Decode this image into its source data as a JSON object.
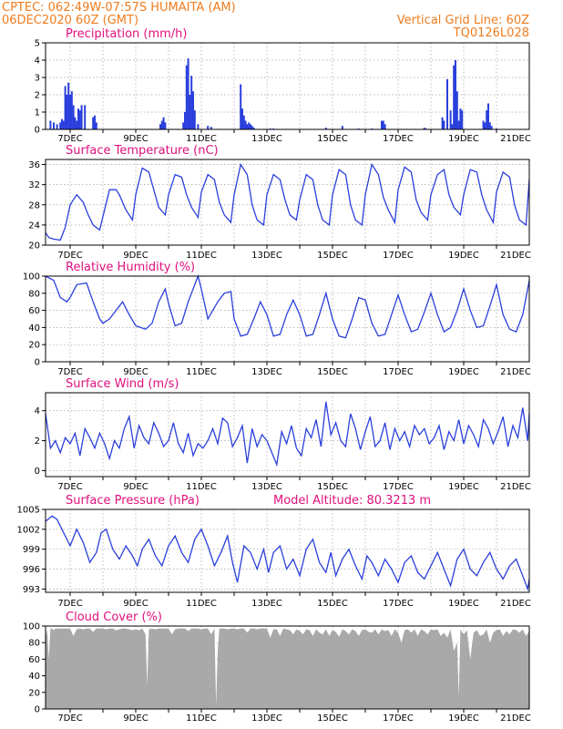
{
  "header": {
    "line1_left": "CPTEC:   062:49W-07:57S   HUMAITA (AM)",
    "line2_left": "06DEC2020 60Z (GMT)",
    "line1_right": "Vertical Grid Line: 60Z",
    "line2_right": "TQ0126L028"
  },
  "colors": {
    "header": "#f07c1e",
    "title": "#e0107e",
    "line": "#2a3fdc",
    "cloud": "#a9a9a9",
    "grid": "#a0a0a0"
  },
  "x_axis": {
    "labels": [
      "7DEC",
      "9DEC",
      "11DEC",
      "13DEC",
      "15DEC",
      "17DEC",
      "19DEC",
      "21DEC"
    ],
    "xlim": [
      6.25,
      21.0
    ]
  },
  "chart_data": [
    {
      "id": "precip",
      "type": "bar",
      "title": "Precipitation (mm/h)",
      "ylim": [
        0,
        5
      ],
      "yticks": [
        "0",
        "1",
        "2",
        "3",
        "4",
        "5"
      ],
      "x": [
        6.4,
        6.5,
        6.6,
        6.7,
        6.75,
        6.8,
        6.85,
        6.9,
        6.95,
        7.0,
        7.05,
        7.1,
        7.15,
        7.2,
        7.25,
        7.3,
        7.35,
        7.45,
        7.7,
        7.75,
        7.8,
        9.75,
        9.8,
        9.85,
        9.9,
        10.45,
        10.5,
        10.55,
        10.6,
        10.65,
        10.7,
        10.75,
        10.8,
        10.9,
        11.2,
        11.3,
        12.2,
        12.25,
        12.3,
        12.35,
        12.4,
        12.45,
        12.5,
        12.55,
        12.6,
        13.1,
        13.2,
        14.8,
        15.3,
        15.8,
        16.2,
        16.5,
        16.55,
        16.6,
        17.8,
        17.85,
        18.35,
        18.4,
        18.5,
        18.6,
        18.65,
        18.7,
        18.75,
        18.8,
        18.85,
        18.9,
        18.95,
        19.6,
        19.65,
        19.7,
        19.75,
        19.8,
        19.85,
        20.0
      ],
      "values": [
        0.5,
        0.4,
        0.3,
        0.4,
        0.6,
        0.5,
        2.5,
        2.0,
        2.7,
        2.0,
        2.2,
        1.4,
        0.7,
        0.5,
        1.2,
        1.1,
        1.4,
        1.4,
        0.7,
        0.8,
        0.4,
        0.3,
        0.5,
        0.7,
        0.4,
        0.4,
        1.0,
        3.7,
        4.1,
        2.0,
        3.1,
        2.2,
        1.1,
        0.3,
        0.2,
        0.15,
        2.6,
        1.2,
        0.8,
        0.5,
        0.3,
        0.4,
        0.3,
        0.2,
        0.1,
        0.05,
        0.05,
        0.1,
        0.2,
        0.05,
        0.05,
        0.5,
        0.5,
        0.3,
        0.1,
        0.05,
        0.7,
        0.5,
        2.9,
        1.1,
        0.3,
        3.7,
        4.0,
        2.2,
        0.5,
        1.2,
        1.1,
        0.5,
        0.4,
        1.1,
        1.5,
        0.4,
        0.2,
        0.05
      ]
    },
    {
      "id": "temp",
      "type": "line",
      "title": "Surface Temperature (nC)",
      "ylim": [
        20,
        37
      ],
      "yticks": [
        "20",
        "24",
        "28",
        "32",
        "36"
      ],
      "x": [
        6.25,
        6.35,
        6.5,
        6.7,
        6.85,
        7.0,
        7.2,
        7.4,
        7.55,
        7.7,
        7.9,
        8.05,
        8.2,
        8.4,
        8.5,
        8.7,
        8.9,
        9.0,
        9.2,
        9.4,
        9.55,
        9.7,
        9.9,
        10.0,
        10.2,
        10.4,
        10.55,
        10.7,
        10.9,
        11.0,
        11.2,
        11.4,
        11.55,
        11.7,
        11.9,
        12.0,
        12.2,
        12.4,
        12.55,
        12.7,
        12.9,
        13.0,
        13.2,
        13.4,
        13.55,
        13.7,
        13.9,
        14.0,
        14.2,
        14.4,
        14.55,
        14.7,
        14.9,
        15.0,
        15.2,
        15.4,
        15.55,
        15.7,
        15.9,
        16.0,
        16.2,
        16.4,
        16.55,
        16.7,
        16.9,
        17.0,
        17.2,
        17.4,
        17.55,
        17.7,
        17.9,
        18.0,
        18.2,
        18.4,
        18.55,
        18.7,
        18.9,
        19.0,
        19.2,
        19.4,
        19.55,
        19.7,
        19.9,
        20.0,
        20.2,
        20.4,
        20.55,
        20.7,
        20.9,
        21.0
      ],
      "values": [
        22.5,
        21.5,
        21.2,
        21.0,
        23.5,
        28.0,
        30.0,
        28.5,
        26.0,
        24.0,
        23.0,
        27.0,
        31.0,
        31.0,
        30.0,
        27.0,
        25.0,
        30.0,
        35.3,
        34.5,
        31.0,
        27.5,
        26.0,
        30.0,
        34.0,
        33.5,
        30.0,
        27.5,
        25.5,
        30.5,
        34.0,
        33.0,
        28.5,
        26.0,
        24.5,
        30.0,
        36.0,
        34.0,
        28.0,
        25.0,
        24.0,
        30.0,
        34.0,
        33.0,
        29.0,
        26.0,
        25.0,
        29.0,
        34.0,
        33.0,
        28.0,
        25.0,
        24.0,
        30.0,
        35.0,
        34.0,
        28.0,
        25.0,
        24.0,
        30.0,
        36.0,
        34.0,
        29.5,
        27.0,
        24.5,
        31.0,
        35.5,
        34.5,
        29.0,
        26.5,
        25.0,
        30.0,
        34.0,
        35.0,
        30.0,
        27.5,
        26.0,
        30.0,
        35.0,
        34.5,
        30.0,
        27.0,
        24.5,
        30.5,
        34.5,
        33.5,
        28.0,
        25.0,
        24.0,
        33.0
      ]
    },
    {
      "id": "rh",
      "type": "line",
      "title": "Relative Humidity (%)",
      "ylim": [
        0,
        100
      ],
      "yticks": [
        "0",
        "20",
        "40",
        "60",
        "80",
        "100"
      ],
      "x": [
        6.25,
        6.5,
        6.7,
        6.9,
        7.0,
        7.2,
        7.5,
        7.7,
        7.9,
        8.0,
        8.2,
        8.4,
        8.6,
        8.8,
        9.0,
        9.3,
        9.5,
        9.7,
        9.9,
        10.0,
        10.2,
        10.4,
        10.6,
        10.8,
        10.9,
        11.0,
        11.2,
        11.5,
        11.7,
        11.9,
        12.0,
        12.2,
        12.4,
        12.6,
        12.8,
        13.0,
        13.2,
        13.4,
        13.6,
        13.8,
        14.0,
        14.2,
        14.4,
        14.6,
        14.8,
        15.0,
        15.2,
        15.4,
        15.6,
        15.8,
        16.0,
        16.2,
        16.4,
        16.6,
        16.8,
        17.0,
        17.2,
        17.4,
        17.6,
        17.8,
        18.0,
        18.2,
        18.4,
        18.6,
        18.8,
        19.0,
        19.2,
        19.4,
        19.6,
        19.8,
        20.0,
        20.2,
        20.4,
        20.6,
        20.8,
        21.0
      ],
      "values": [
        100,
        95,
        75,
        70,
        75,
        90,
        92,
        70,
        50,
        45,
        50,
        60,
        70,
        55,
        42,
        38,
        45,
        70,
        85,
        68,
        42,
        45,
        70,
        90,
        100,
        85,
        50,
        70,
        80,
        82,
        50,
        30,
        32,
        50,
        70,
        55,
        30,
        32,
        55,
        72,
        55,
        30,
        32,
        55,
        80,
        50,
        30,
        28,
        50,
        75,
        72,
        45,
        30,
        32,
        55,
        78,
        55,
        35,
        38,
        58,
        80,
        55,
        35,
        40,
        60,
        85,
        60,
        40,
        42,
        65,
        90,
        55,
        38,
        35,
        55,
        95
      ]
    },
    {
      "id": "wind",
      "type": "line",
      "title": "Surface Wind (m/s)",
      "ylim": [
        -0.4,
        5.2
      ],
      "yticks": [
        "0",
        "2",
        "4"
      ],
      "x": [
        6.25,
        6.4,
        6.55,
        6.7,
        6.85,
        7.0,
        7.15,
        7.3,
        7.45,
        7.6,
        7.75,
        7.9,
        8.05,
        8.2,
        8.35,
        8.5,
        8.65,
        8.8,
        8.95,
        9.1,
        9.25,
        9.4,
        9.55,
        9.7,
        9.85,
        10.0,
        10.15,
        10.3,
        10.45,
        10.6,
        10.75,
        10.9,
        11.05,
        11.2,
        11.35,
        11.5,
        11.65,
        11.8,
        11.95,
        12.1,
        12.25,
        12.4,
        12.55,
        12.7,
        12.85,
        13.0,
        13.15,
        13.3,
        13.45,
        13.6,
        13.75,
        13.9,
        14.05,
        14.2,
        14.35,
        14.5,
        14.65,
        14.8,
        14.95,
        15.1,
        15.25,
        15.4,
        15.55,
        15.7,
        15.85,
        16.0,
        16.15,
        16.3,
        16.45,
        16.6,
        16.75,
        16.9,
        17.05,
        17.2,
        17.35,
        17.5,
        17.65,
        17.8,
        17.95,
        18.1,
        18.25,
        18.4,
        18.55,
        18.7,
        18.85,
        19.0,
        19.15,
        19.3,
        19.45,
        19.6,
        19.75,
        19.9,
        20.05,
        20.2,
        20.35,
        20.5,
        20.65,
        20.8,
        20.95,
        21.0
      ],
      "values": [
        3.8,
        1.5,
        2.0,
        1.2,
        2.2,
        1.8,
        2.5,
        1.0,
        2.8,
        2.2,
        1.5,
        2.5,
        1.8,
        0.8,
        2.0,
        1.5,
        2.8,
        3.6,
        1.5,
        3.0,
        2.2,
        1.8,
        3.2,
        2.5,
        1.6,
        2.0,
        3.2,
        1.8,
        1.2,
        2.5,
        1.0,
        1.8,
        1.5,
        2.0,
        2.8,
        1.8,
        3.5,
        3.2,
        1.6,
        2.2,
        3.0,
        0.5,
        2.8,
        1.6,
        2.4,
        2.0,
        1.2,
        0.4,
        2.6,
        1.8,
        3.0,
        1.5,
        1.0,
        2.8,
        2.2,
        3.4,
        1.6,
        4.6,
        2.4,
        3.2,
        2.0,
        1.6,
        3.8,
        2.8,
        1.4,
        2.6,
        3.6,
        1.6,
        2.0,
        3.2,
        1.4,
        2.8,
        2.0,
        2.6,
        1.6,
        3.0,
        2.4,
        2.8,
        1.8,
        2.2,
        3.0,
        1.4,
        2.6,
        2.0,
        3.4,
        1.8,
        3.0,
        2.4,
        1.6,
        3.4,
        2.8,
        1.8,
        2.6,
        3.6,
        1.6,
        3.0,
        2.2,
        4.2,
        2.0,
        3.8
      ]
    },
    {
      "id": "pres",
      "type": "line",
      "title": "Surface Pressure (hPa)",
      "annotation": "Model Altitude: 80.3213 m",
      "ylim": [
        992.5,
        1005
      ],
      "yticks": [
        "993",
        "996",
        "999",
        "1002",
        "1005"
      ],
      "x": [
        6.25,
        6.45,
        6.6,
        6.8,
        7.0,
        7.2,
        7.4,
        7.6,
        7.8,
        7.95,
        8.1,
        8.3,
        8.5,
        8.7,
        8.9,
        9.05,
        9.2,
        9.4,
        9.6,
        9.8,
        10.0,
        10.2,
        10.4,
        10.6,
        10.8,
        11.0,
        11.2,
        11.4,
        11.6,
        11.8,
        11.95,
        12.1,
        12.3,
        12.5,
        12.7,
        12.9,
        13.05,
        13.2,
        13.4,
        13.6,
        13.8,
        14.0,
        14.2,
        14.4,
        14.6,
        14.8,
        14.95,
        15.1,
        15.3,
        15.5,
        15.7,
        15.9,
        16.05,
        16.2,
        16.4,
        16.6,
        16.8,
        17.0,
        17.2,
        17.4,
        17.6,
        17.8,
        18.0,
        18.2,
        18.4,
        18.6,
        18.8,
        19.0,
        19.2,
        19.4,
        19.6,
        19.8,
        20.0,
        20.2,
        20.4,
        20.6,
        20.8,
        20.95,
        21.0
      ],
      "values": [
        1003.2,
        1004.0,
        1003.5,
        1001.5,
        999.5,
        1002.0,
        1000.0,
        997.0,
        998.5,
        1001.5,
        1002.0,
        999.0,
        997.5,
        999.5,
        998.0,
        996.5,
        999.0,
        1000.5,
        998.0,
        996.5,
        999.5,
        1001.0,
        998.5,
        997.0,
        1000.5,
        1002.0,
        999.5,
        996.5,
        998.5,
        1001.0,
        997.0,
        994.0,
        999.5,
        998.5,
        996.0,
        999.0,
        995.5,
        998.5,
        999.5,
        996.0,
        997.5,
        995.0,
        999.0,
        1000.5,
        997.0,
        995.5,
        998.5,
        995.0,
        997.5,
        999.0,
        996.5,
        994.5,
        998.0,
        997.0,
        995.0,
        997.5,
        996.0,
        994.0,
        997.0,
        998.0,
        995.5,
        994.5,
        996.5,
        998.5,
        996.0,
        993.5,
        997.5,
        999.0,
        996.0,
        995.0,
        997.0,
        998.5,
        996.0,
        994.5,
        996.5,
        997.5,
        995.0,
        993.0,
        994.5
      ]
    },
    {
      "id": "cloud",
      "type": "area",
      "title": "Cloud Cover (%)",
      "ylim": [
        0,
        100
      ],
      "yticks": [
        "0",
        "20",
        "40",
        "60",
        "80",
        "100"
      ],
      "x": [
        6.25,
        6.3,
        6.35,
        6.4,
        6.45,
        6.5,
        6.55,
        6.6,
        6.7,
        6.8,
        6.9,
        7.0,
        7.1,
        7.2,
        7.3,
        7.4,
        7.5,
        7.6,
        7.7,
        7.8,
        7.9,
        8.0,
        8.1,
        8.2,
        8.3,
        8.4,
        8.5,
        8.6,
        8.7,
        8.8,
        8.9,
        9.0,
        9.1,
        9.2,
        9.3,
        9.35,
        9.4,
        9.5,
        9.6,
        9.7,
        9.8,
        9.9,
        10.0,
        10.1,
        10.2,
        10.3,
        10.4,
        10.5,
        10.6,
        10.7,
        10.8,
        10.9,
        11.0,
        11.1,
        11.2,
        11.3,
        11.4,
        11.45,
        11.5,
        11.55,
        11.6,
        11.7,
        11.8,
        11.9,
        12.0,
        12.1,
        12.2,
        12.3,
        12.4,
        12.5,
        12.6,
        12.7,
        12.8,
        12.9,
        13.0,
        13.1,
        13.2,
        13.3,
        13.4,
        13.5,
        13.6,
        13.7,
        13.8,
        13.9,
        14.0,
        14.1,
        14.2,
        14.3,
        14.4,
        14.5,
        14.6,
        14.7,
        14.8,
        14.9,
        15.0,
        15.1,
        15.2,
        15.3,
        15.4,
        15.5,
        15.6,
        15.7,
        15.8,
        15.9,
        16.0,
        16.1,
        16.2,
        16.3,
        16.4,
        16.5,
        16.6,
        16.7,
        16.8,
        16.9,
        17.0,
        17.1,
        17.2,
        17.3,
        17.4,
        17.5,
        17.6,
        17.7,
        17.8,
        17.9,
        18.0,
        18.1,
        18.2,
        18.3,
        18.4,
        18.5,
        18.6,
        18.7,
        18.8,
        18.85,
        18.9,
        19.0,
        19.1,
        19.2,
        19.3,
        19.4,
        19.5,
        19.6,
        19.7,
        19.8,
        19.9,
        20.0,
        20.1,
        20.2,
        20.3,
        20.4,
        20.5,
        20.6,
        20.7,
        20.8,
        20.9,
        21.0
      ],
      "values": [
        85,
        96,
        60,
        97,
        97,
        95,
        97,
        97,
        97,
        97,
        97,
        97,
        88,
        96,
        97,
        96,
        97,
        97,
        93,
        97,
        97,
        97,
        96,
        97,
        97,
        95,
        96,
        97,
        97,
        96,
        95,
        96,
        95,
        97,
        90,
        28,
        96,
        97,
        96,
        97,
        97,
        97,
        97,
        90,
        96,
        97,
        97,
        97,
        94,
        97,
        97,
        97,
        96,
        97,
        97,
        90,
        97,
        5,
        70,
        97,
        97,
        97,
        96,
        97,
        97,
        96,
        97,
        97,
        92,
        97,
        97,
        96,
        97,
        97,
        97,
        86,
        96,
        96,
        88,
        97,
        96,
        95,
        90,
        96,
        94,
        90,
        96,
        95,
        88,
        96,
        92,
        90,
        96,
        88,
        95,
        93,
        87,
        96,
        94,
        90,
        96,
        94,
        88,
        95,
        96,
        93,
        92,
        96,
        90,
        96,
        94,
        95,
        88,
        96,
        92,
        80,
        95,
        96,
        92,
        96,
        88,
        96,
        94,
        90,
        96,
        95,
        96,
        88,
        92,
        86,
        96,
        70,
        80,
        15,
        96,
        90,
        95,
        60,
        92,
        95,
        88,
        90,
        96,
        80,
        92,
        95,
        96,
        88,
        94,
        90,
        96,
        95,
        92,
        96,
        88,
        94
      ]
    }
  ]
}
